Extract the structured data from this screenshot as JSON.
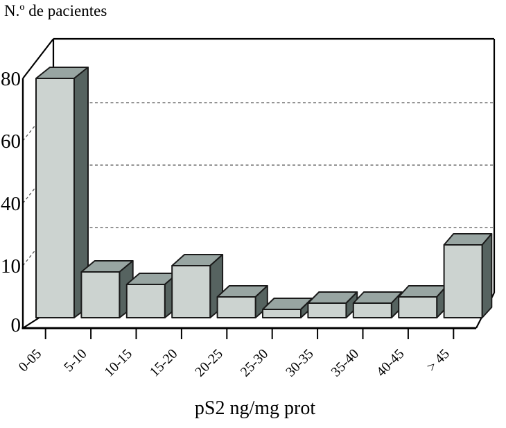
{
  "figure": {
    "background": "#ffffff"
  },
  "chart_data": {
    "type": "bar",
    "style": "3d-column-histogram",
    "title": "",
    "ylabel": "N.º de pacientes",
    "xlabel": "pS2 ng/mg prot",
    "categories": [
      "0-05",
      "5-10",
      "10-15",
      "15-20",
      "20-25",
      "25-30",
      "30-35",
      "35-40",
      "40-45",
      "> 45"
    ],
    "values": [
      80,
      9,
      7,
      10,
      5,
      3,
      4,
      4,
      5,
      20
    ],
    "y_ticks": [
      0,
      10,
      40,
      60,
      80
    ],
    "y_axis_note": "tick marks printed at equal visual spacing (non-linear scale as in original)",
    "ylim": [
      0,
      80
    ],
    "grid": "dashed horizontal gridlines on back wall at ticks 10, 40, 60; dashed diagonals on left wall",
    "legend": "none",
    "colors": {
      "bar_front": "#ccd3d0",
      "bar_top": "#98a5a2",
      "bar_side": "#566360",
      "outline": "#1a1a1a",
      "grid_line": "#555555",
      "axis_line": "#000000",
      "background": "#ffffff"
    }
  }
}
